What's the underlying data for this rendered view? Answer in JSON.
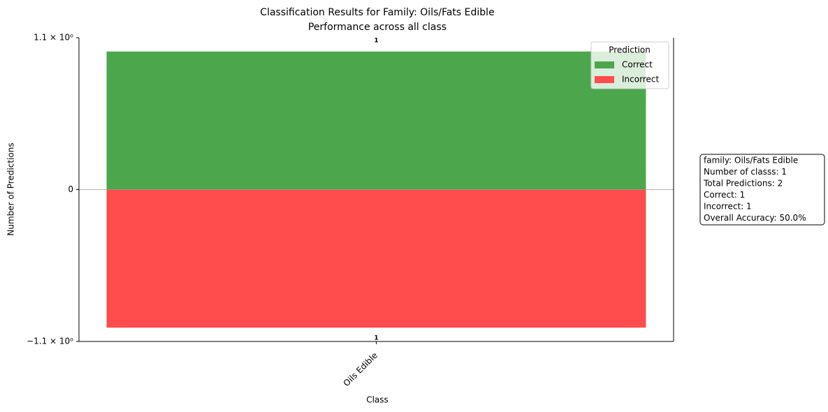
{
  "chart_data": {
    "type": "diverging_bar",
    "title": "Classification Results for Family: Oils/Fats Edible",
    "subtitle": "Performance across all class",
    "xlabel": "Class",
    "ylabel": "Number of Predictions",
    "categories": [
      "Oils Edible"
    ],
    "series": [
      {
        "name": "Correct",
        "color": "#4ca64c",
        "values": [
          1
        ],
        "value_labels": [
          "1"
        ]
      },
      {
        "name": "Incorrect",
        "color": "#ff4c4c",
        "values": [
          -1
        ],
        "value_labels": [
          "1"
        ]
      }
    ],
    "ylim": [
      -1.1,
      1.1
    ],
    "yticks": [
      {
        "value": -1.1,
        "label": "−1.1 × 10⁰"
      },
      0,
      {
        "value": 1.1,
        "label": "1.1 × 10⁰"
      }
    ],
    "legend": {
      "title": "Prediction",
      "position": "upper right"
    },
    "info_box": [
      "family: Oils/Fats Edible",
      "Number of classs: 1",
      "Total Predictions: 2",
      "Correct: 1",
      "Incorrect: 1",
      "Overall Accuracy: 50.0%"
    ]
  }
}
